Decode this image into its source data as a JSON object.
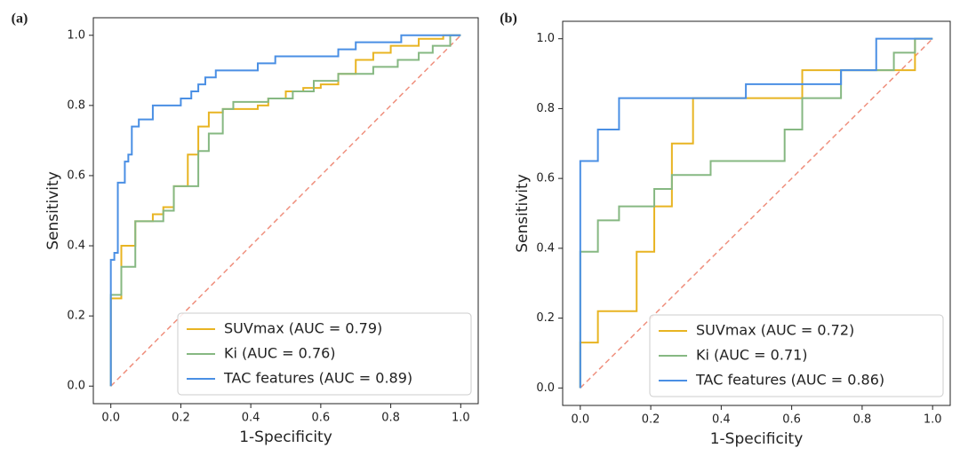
{
  "chart_data": [
    {
      "type": "line",
      "label": "(a)",
      "xlabel": "1-Specificity",
      "ylabel": "Sensitivity",
      "xlim": [
        -0.05,
        1.05
      ],
      "ylim": [
        -0.05,
        1.05
      ],
      "xticks": [
        {
          "value": 0,
          "label": "0.0"
        },
        0.2,
        0.4,
        0.6,
        0.8,
        {
          "value": 1,
          "label": "1.0"
        }
      ],
      "yticks": [
        {
          "value": 0,
          "label": "0.0"
        },
        0.2,
        0.4,
        0.6,
        0.8,
        {
          "value": 1,
          "label": "1.0"
        }
      ],
      "legend": "lower right",
      "reference_line": {
        "x": [
          0,
          1
        ],
        "values": [
          0,
          1
        ],
        "color": "#ef8f7d"
      },
      "series": [
        {
          "name": "SUVmax (AUC = 0.79)",
          "color": "#e8b422",
          "x": [
            0,
            0,
            0.03,
            0.03,
            0.07,
            0.07,
            0.12,
            0.12,
            0.15,
            0.15,
            0.18,
            0.18,
            0.22,
            0.22,
            0.25,
            0.25,
            0.28,
            0.28,
            0.32,
            0.32,
            0.42,
            0.42,
            0.45,
            0.45,
            0.5,
            0.5,
            0.55,
            0.55,
            0.6,
            0.6,
            0.65,
            0.65,
            0.7,
            0.7,
            0.75,
            0.75,
            0.8,
            0.8,
            0.88,
            0.88,
            0.95,
            0.95,
            1
          ],
          "values": [
            0,
            0.25,
            0.25,
            0.4,
            0.4,
            0.47,
            0.47,
            0.49,
            0.49,
            0.51,
            0.51,
            0.57,
            0.57,
            0.66,
            0.66,
            0.74,
            0.74,
            0.78,
            0.78,
            0.79,
            0.79,
            0.8,
            0.8,
            0.82,
            0.82,
            0.84,
            0.84,
            0.85,
            0.85,
            0.86,
            0.86,
            0.89,
            0.89,
            0.93,
            0.93,
            0.95,
            0.95,
            0.97,
            0.97,
            0.99,
            0.99,
            1,
            1
          ]
        },
        {
          "name": "Ki (AUC = 0.76)",
          "color": "#86b882",
          "x": [
            0,
            0,
            0.03,
            0.03,
            0.07,
            0.07,
            0.15,
            0.15,
            0.18,
            0.18,
            0.25,
            0.25,
            0.28,
            0.28,
            0.32,
            0.32,
            0.35,
            0.35,
            0.45,
            0.45,
            0.52,
            0.52,
            0.58,
            0.58,
            0.65,
            0.65,
            0.75,
            0.75,
            0.82,
            0.82,
            0.88,
            0.88,
            0.92,
            0.92,
            0.97,
            0.97,
            1
          ],
          "values": [
            0,
            0.26,
            0.26,
            0.34,
            0.34,
            0.47,
            0.47,
            0.5,
            0.5,
            0.57,
            0.57,
            0.67,
            0.67,
            0.72,
            0.72,
            0.79,
            0.79,
            0.81,
            0.81,
            0.82,
            0.82,
            0.84,
            0.84,
            0.87,
            0.87,
            0.89,
            0.89,
            0.91,
            0.91,
            0.93,
            0.93,
            0.95,
            0.95,
            0.97,
            0.97,
            1,
            1
          ]
        },
        {
          "name": "TAC features (AUC = 0.89)",
          "color": "#4a8fe4",
          "x": [
            0,
            0,
            0.01,
            0.01,
            0.02,
            0.02,
            0.04,
            0.04,
            0.05,
            0.05,
            0.06,
            0.06,
            0.08,
            0.08,
            0.12,
            0.12,
            0.2,
            0.2,
            0.23,
            0.23,
            0.25,
            0.25,
            0.27,
            0.27,
            0.3,
            0.3,
            0.42,
            0.42,
            0.47,
            0.47,
            0.65,
            0.65,
            0.7,
            0.7,
            0.83,
            0.83,
            1
          ],
          "values": [
            0,
            0.36,
            0.36,
            0.38,
            0.38,
            0.58,
            0.58,
            0.64,
            0.64,
            0.66,
            0.66,
            0.74,
            0.74,
            0.76,
            0.76,
            0.8,
            0.8,
            0.82,
            0.82,
            0.84,
            0.84,
            0.86,
            0.86,
            0.88,
            0.88,
            0.9,
            0.9,
            0.92,
            0.92,
            0.94,
            0.94,
            0.96,
            0.96,
            0.98,
            0.98,
            1,
            1
          ]
        }
      ]
    },
    {
      "type": "line",
      "label": "(b)",
      "xlabel": "1-Specificity",
      "ylabel": "Sensitivity",
      "xlim": [
        -0.05,
        1.05
      ],
      "ylim": [
        -0.05,
        1.05
      ],
      "xticks": [
        {
          "value": 0,
          "label": "0.0"
        },
        0.2,
        0.4,
        0.6,
        0.8,
        {
          "value": 1,
          "label": "1.0"
        }
      ],
      "yticks": [
        {
          "value": 0,
          "label": "0.0"
        },
        0.2,
        0.4,
        0.6,
        0.8,
        {
          "value": 1,
          "label": "1.0"
        }
      ],
      "legend": "lower right",
      "reference_line": {
        "x": [
          0,
          1
        ],
        "values": [
          0,
          1
        ],
        "color": "#ef8f7d"
      },
      "series": [
        {
          "name": "SUVmax (AUC = 0.72)",
          "color": "#e8b422",
          "x": [
            0,
            0,
            0.05,
            0.05,
            0.16,
            0.16,
            0.21,
            0.21,
            0.26,
            0.26,
            0.32,
            0.32,
            0.63,
            0.63,
            0.95,
            0.95,
            1
          ],
          "values": [
            0,
            0.13,
            0.13,
            0.22,
            0.22,
            0.39,
            0.39,
            0.52,
            0.52,
            0.7,
            0.7,
            0.83,
            0.83,
            0.91,
            0.91,
            1,
            1
          ]
        },
        {
          "name": "Ki (AUC = 0.71)",
          "color": "#86b882",
          "x": [
            0,
            0,
            0.05,
            0.05,
            0.11,
            0.11,
            0.21,
            0.21,
            0.26,
            0.26,
            0.37,
            0.37,
            0.58,
            0.58,
            0.63,
            0.63,
            0.74,
            0.74,
            0.89,
            0.89,
            0.95,
            0.95,
            1
          ],
          "values": [
            0,
            0.39,
            0.39,
            0.48,
            0.48,
            0.52,
            0.52,
            0.57,
            0.57,
            0.61,
            0.61,
            0.65,
            0.65,
            0.74,
            0.74,
            0.83,
            0.83,
            0.91,
            0.91,
            0.96,
            0.96,
            1,
            1
          ]
        },
        {
          "name": "TAC features (AUC = 0.86)",
          "color": "#4a8fe4",
          "x": [
            0,
            0,
            0.05,
            0.05,
            0.11,
            0.11,
            0.47,
            0.47,
            0.74,
            0.74,
            0.84,
            0.84,
            1
          ],
          "values": [
            0,
            0.65,
            0.65,
            0.74,
            0.74,
            0.83,
            0.83,
            0.87,
            0.87,
            0.91,
            0.91,
            1,
            1
          ]
        }
      ]
    }
  ]
}
